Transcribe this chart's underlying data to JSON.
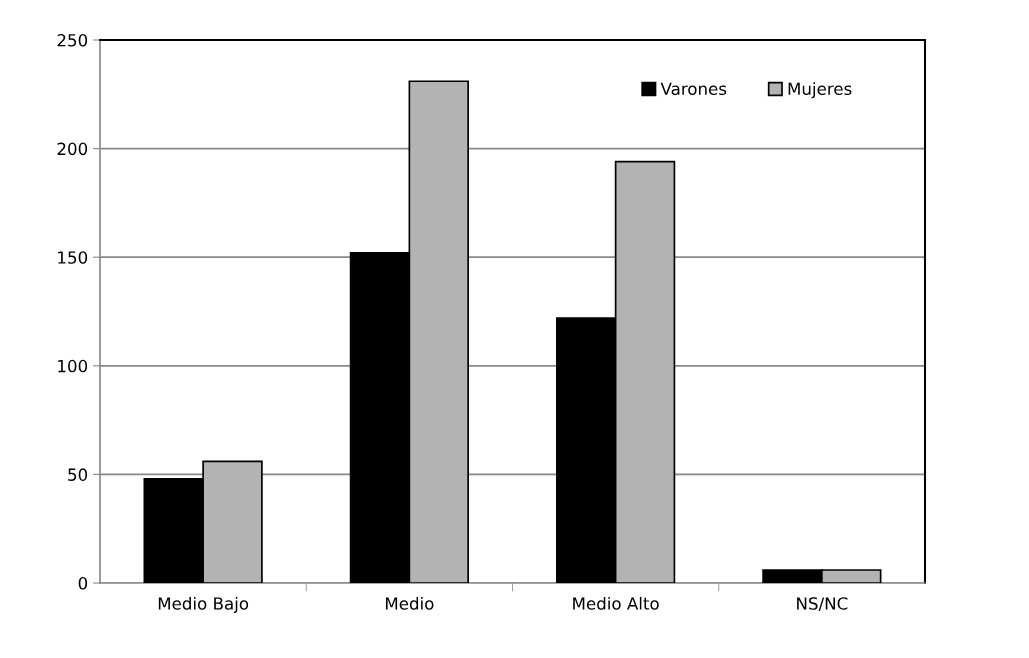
{
  "chart_data": {
    "type": "bar",
    "categories": [
      "Medio Bajo",
      "Medio",
      "Medio Alto",
      "NS/NC"
    ],
    "series": [
      {
        "name": "Varones",
        "color": "#000000",
        "values": [
          48,
          152,
          122,
          6
        ]
      },
      {
        "name": "Mujeres",
        "color": "#b3b3b3",
        "values": [
          56,
          231,
          194,
          6
        ]
      }
    ],
    "ylim": [
      0,
      250
    ],
    "yticks": [
      0,
      50,
      100,
      150,
      200,
      250
    ],
    "grid": "y",
    "legend": "top right"
  }
}
